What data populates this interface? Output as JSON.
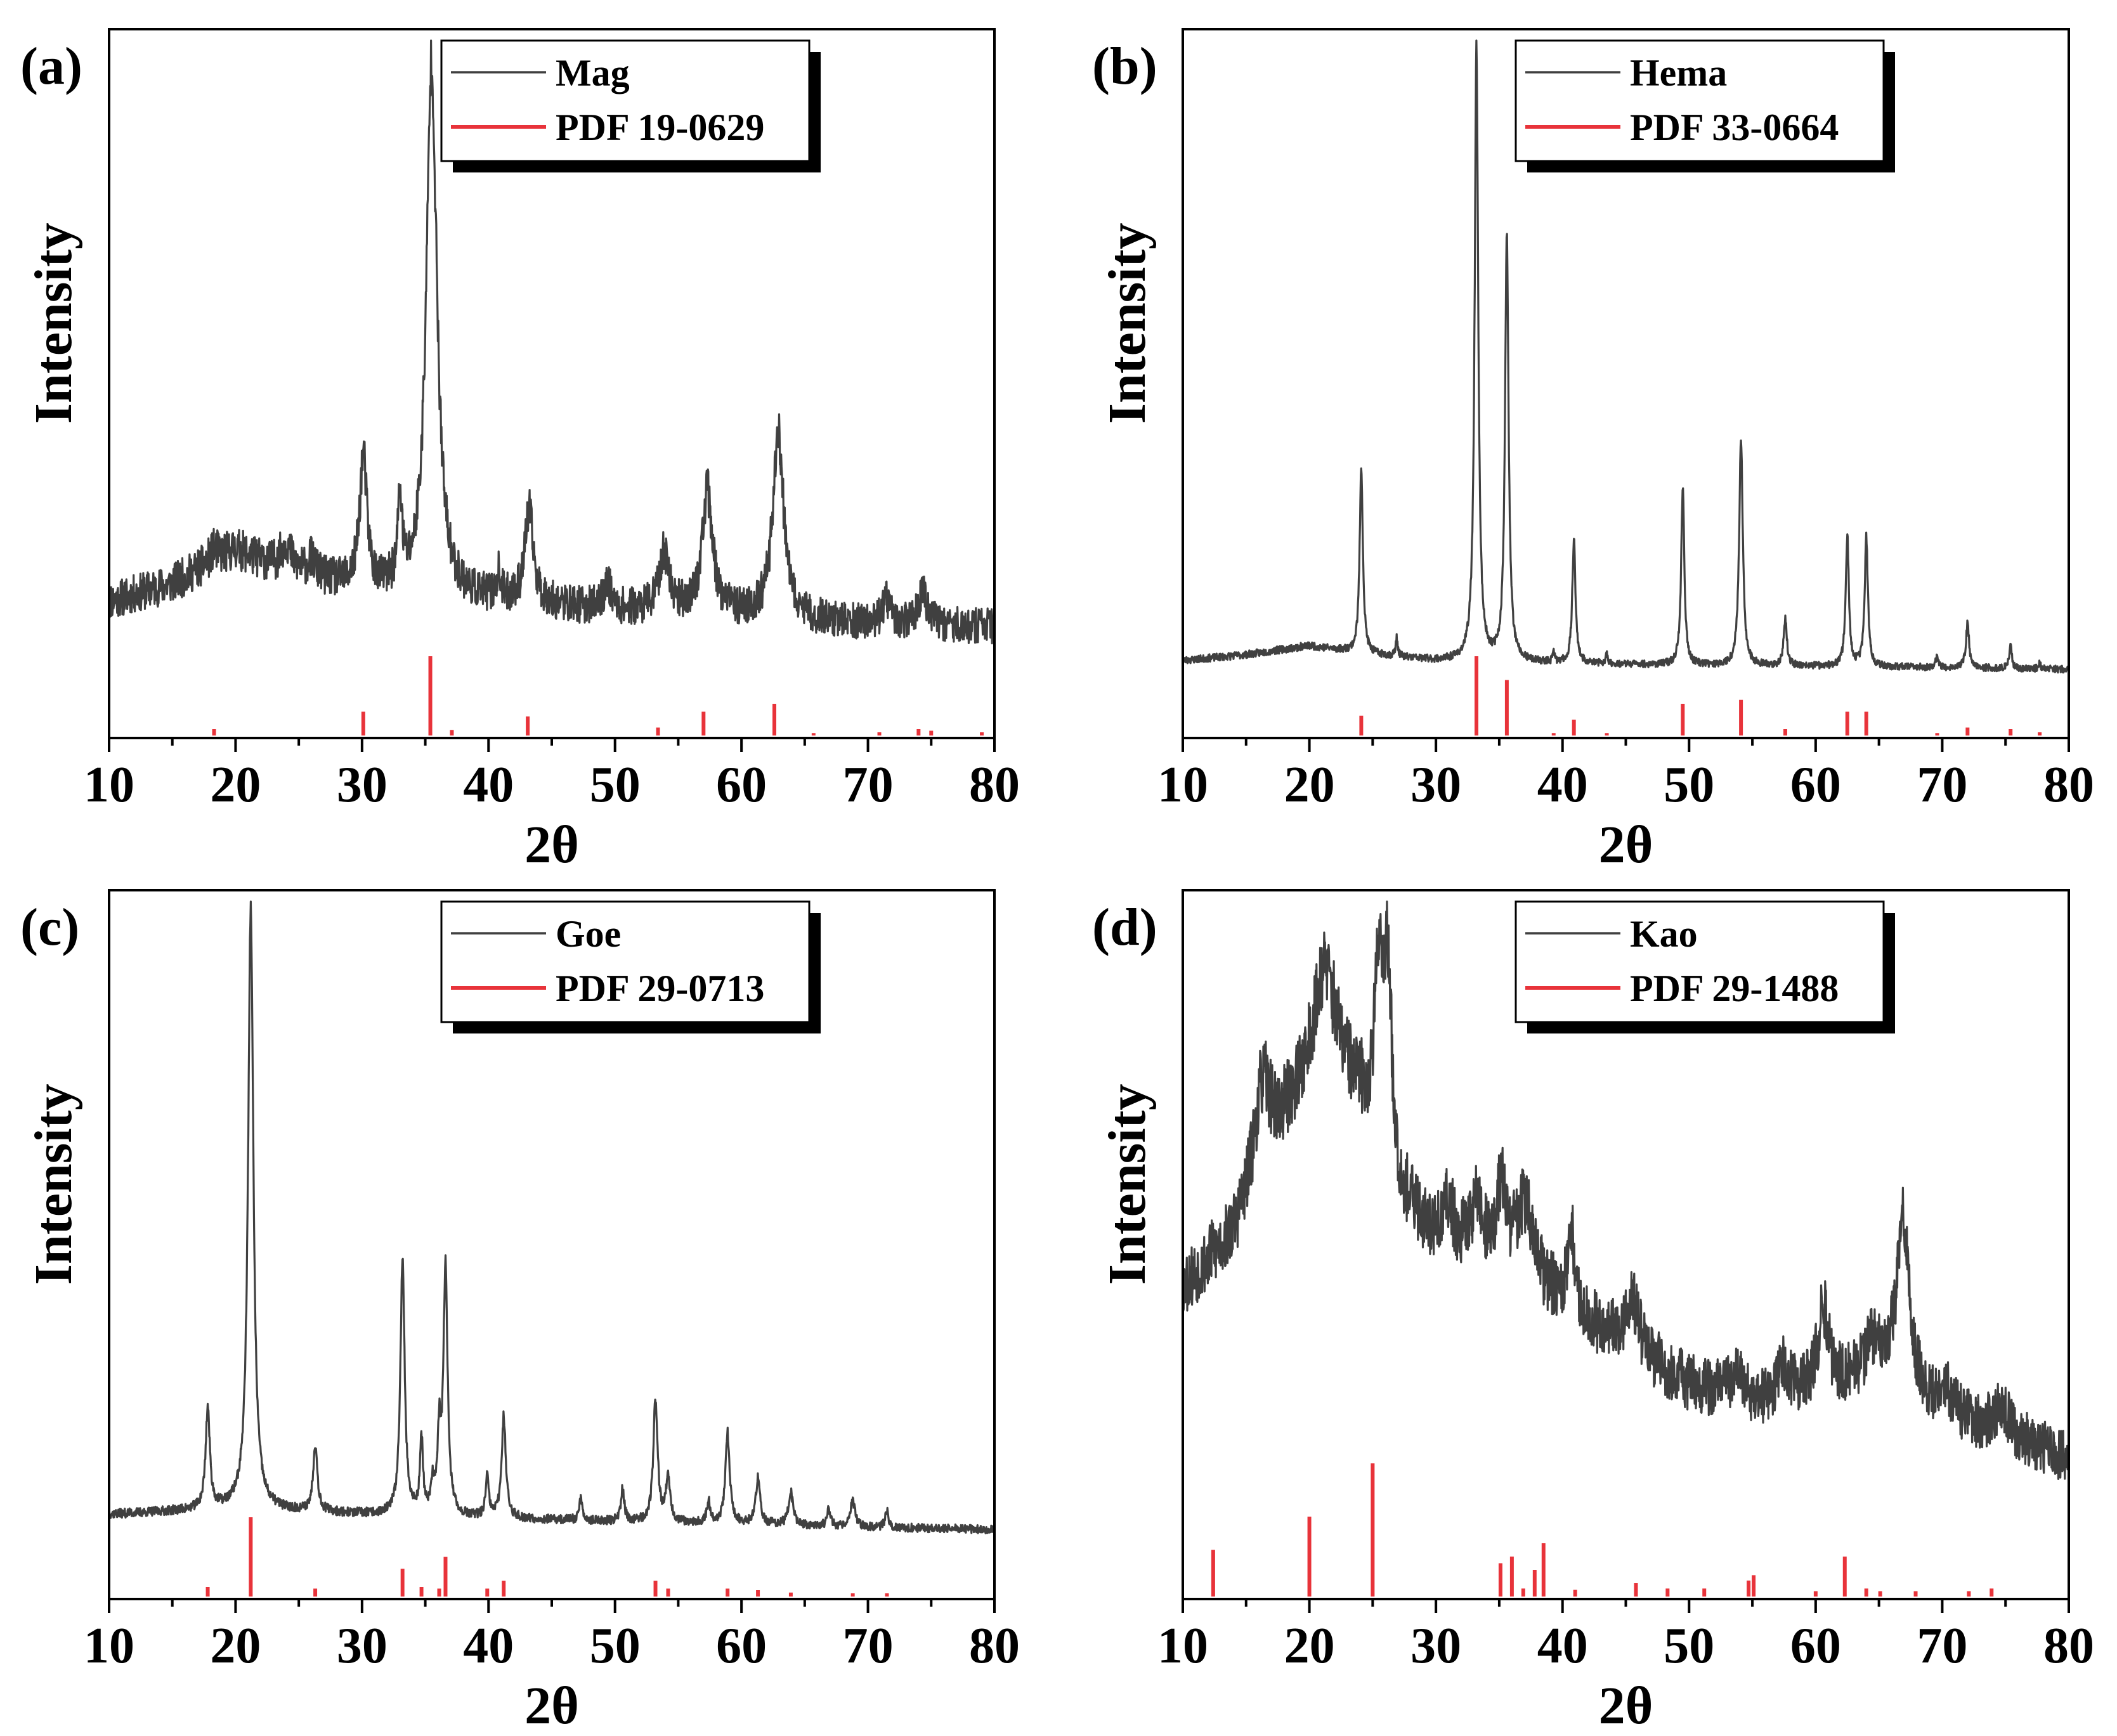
{
  "figure": {
    "description_hidden": false
  },
  "colors": {
    "pattern": "#404040",
    "reference": "#e8333a",
    "axis": "#000000"
  },
  "chart_data": [
    {
      "type": "line",
      "panel_label": "(a)",
      "ylabel": "Intensity",
      "xlabel": "2θ",
      "xlim": [
        10,
        80
      ],
      "xticks": [
        10,
        20,
        30,
        40,
        50,
        60,
        70,
        80
      ],
      "grid": false,
      "legend": {
        "position": "top-right",
        "entries": [
          "Mag",
          "PDF 19-0629"
        ]
      },
      "series": [
        {
          "name": "Mag",
          "kind": "pattern",
          "noise": 0.35,
          "seed": 11,
          "baseline": [
            [
              10,
              1.45
            ],
            [
              15,
              1.75
            ],
            [
              20,
              2.35
            ],
            [
              24,
              1.95
            ],
            [
              30,
              1.65
            ],
            [
              40,
              1.45
            ],
            [
              50,
              1.3
            ],
            [
              60,
              1.2
            ],
            [
              70,
              1.05
            ],
            [
              80,
              1.0
            ]
          ],
          "peaks": [
            [
              18.3,
              0.2,
              0.4
            ],
            [
              24.0,
              0.5,
              0.5
            ],
            [
              26.0,
              0.3,
              0.4
            ],
            [
              30.1,
              2.3,
              0.35
            ],
            [
              33.0,
              1.5,
              0.2
            ],
            [
              35.5,
              9.3,
              0.5
            ],
            [
              40.8,
              0.4,
              0.2
            ],
            [
              43.2,
              1.6,
              0.4
            ],
            [
              49.4,
              0.5,
              0.3
            ],
            [
              53.9,
              1.0,
              0.5
            ],
            [
              57.3,
              2.1,
              0.5
            ],
            [
              62.9,
              3.3,
              0.5
            ],
            [
              71.5,
              0.4,
              0.4
            ],
            [
              74.3,
              0.6,
              0.4
            ]
          ]
        },
        {
          "name": "PDF 19-0629",
          "kind": "reference",
          "sticks": [
            [
              18.3,
              8
            ],
            [
              30.1,
              30
            ],
            [
              35.4,
              100
            ],
            [
              37.1,
              7
            ],
            [
              43.1,
              24
            ],
            [
              53.4,
              10
            ],
            [
              57.0,
              30
            ],
            [
              62.6,
              40
            ],
            [
              65.7,
              3
            ],
            [
              70.9,
              4
            ],
            [
              74.0,
              8
            ],
            [
              75.0,
              6
            ],
            [
              79.0,
              4
            ]
          ]
        }
      ]
    },
    {
      "type": "line",
      "panel_label": "(b)",
      "ylabel": "Intensity",
      "xlabel": "2θ",
      "xlim": [
        10,
        80
      ],
      "xticks": [
        10,
        20,
        30,
        40,
        50,
        60,
        70,
        80
      ],
      "grid": false,
      "legend": {
        "position": "top-right",
        "entries": [
          "Hema",
          "PDF 33-0664"
        ]
      },
      "series": [
        {
          "name": "Hema",
          "kind": "pattern",
          "noise": 0.08,
          "seed": 23,
          "baseline": [
            [
              10,
              0.4
            ],
            [
              15,
              0.5
            ],
            [
              20,
              0.65
            ],
            [
              25,
              0.5
            ],
            [
              30,
              0.4
            ],
            [
              40,
              0.35
            ],
            [
              50,
              0.32
            ],
            [
              60,
              0.3
            ],
            [
              70,
              0.28
            ],
            [
              80,
              0.25
            ]
          ],
          "peaks": [
            [
              24.1,
              3.2,
              0.15
            ],
            [
              26.9,
              0.3,
              0.1
            ],
            [
              33.2,
              10.4,
              0.17
            ],
            [
              35.6,
              7.2,
              0.17
            ],
            [
              39.3,
              0.15,
              0.1
            ],
            [
              40.9,
              2.1,
              0.15
            ],
            [
              43.5,
              0.15,
              0.1
            ],
            [
              49.5,
              3.0,
              0.15
            ],
            [
              54.1,
              3.9,
              0.17
            ],
            [
              57.6,
              0.8,
              0.15
            ],
            [
              62.5,
              2.2,
              0.15
            ],
            [
              64.0,
              2.2,
              0.15
            ],
            [
              69.6,
              0.2,
              0.12
            ],
            [
              72.0,
              0.75,
              0.15
            ],
            [
              75.4,
              0.4,
              0.12
            ],
            [
              77.7,
              0.1,
              0.1
            ]
          ]
        },
        {
          "name": "PDF 33-0664",
          "kind": "reference",
          "sticks": [
            [
              24.1,
              25
            ],
            [
              33.2,
              100
            ],
            [
              35.6,
              70
            ],
            [
              39.3,
              3
            ],
            [
              40.9,
              20
            ],
            [
              43.5,
              3
            ],
            [
              49.5,
              40
            ],
            [
              54.1,
              45
            ],
            [
              57.6,
              8
            ],
            [
              62.5,
              30
            ],
            [
              64.0,
              30
            ],
            [
              69.6,
              3
            ],
            [
              72.0,
              10
            ],
            [
              75.4,
              8
            ],
            [
              77.7,
              4
            ]
          ]
        }
      ]
    },
    {
      "type": "line",
      "panel_label": "(c)",
      "ylabel": "Intensity",
      "xlabel": "2θ",
      "xlim": [
        10,
        80
      ],
      "xticks": [
        10,
        20,
        30,
        40,
        50,
        60,
        70,
        80
      ],
      "grid": false,
      "legend": {
        "position": "top-right",
        "entries": [
          "Goe",
          "PDF 29-0713"
        ]
      },
      "series": [
        {
          "name": "Goe",
          "kind": "pattern",
          "noise": 0.1,
          "seed": 37,
          "baseline": [
            [
              10,
              0.55
            ],
            [
              20,
              0.65
            ],
            [
              30,
              0.55
            ],
            [
              40,
              0.48
            ],
            [
              50,
              0.42
            ],
            [
              60,
              0.38
            ],
            [
              70,
              0.32
            ],
            [
              80,
              0.28
            ]
          ],
          "peaks": [
            [
              17.8,
              1.8,
              0.2
            ],
            [
              21.2,
              10.7,
              0.25
            ],
            [
              26.3,
              1.2,
              0.2
            ],
            [
              33.2,
              4.6,
              0.2
            ],
            [
              34.7,
              1.3,
              0.15
            ],
            [
              35.6,
              0.5,
              0.15
            ],
            [
              36.1,
              1.3,
              0.15
            ],
            [
              36.6,
              4.4,
              0.2
            ],
            [
              39.9,
              0.7,
              0.15
            ],
            [
              41.2,
              1.8,
              0.2
            ],
            [
              47.3,
              0.4,
              0.15
            ],
            [
              50.6,
              0.6,
              0.15
            ],
            [
              53.2,
              2.2,
              0.2
            ],
            [
              54.2,
              0.8,
              0.2
            ],
            [
              57.4,
              0.4,
              0.15
            ],
            [
              58.9,
              1.6,
              0.2
            ],
            [
              61.3,
              0.8,
              0.2
            ],
            [
              63.9,
              0.6,
              0.2
            ],
            [
              66.9,
              0.3,
              0.15
            ],
            [
              68.8,
              0.5,
              0.2
            ],
            [
              71.5,
              0.3,
              0.15
            ]
          ]
        },
        {
          "name": "PDF 29-0713",
          "kind": "reference",
          "sticks": [
            [
              17.8,
              12
            ],
            [
              21.2,
              100
            ],
            [
              26.3,
              10
            ],
            [
              33.2,
              35
            ],
            [
              34.7,
              12
            ],
            [
              36.1,
              10
            ],
            [
              36.6,
              50
            ],
            [
              39.9,
              10
            ],
            [
              41.2,
              20
            ],
            [
              53.2,
              20
            ],
            [
              54.2,
              10
            ],
            [
              58.9,
              10
            ],
            [
              61.3,
              8
            ],
            [
              63.9,
              5
            ],
            [
              68.8,
              4
            ],
            [
              71.5,
              4
            ]
          ]
        }
      ]
    },
    {
      "type": "line",
      "panel_label": "(d)",
      "ylabel": "Intensity",
      "xlabel": "2θ",
      "xlim": [
        10,
        80
      ],
      "xticks": [
        10,
        20,
        30,
        40,
        50,
        60,
        70,
        80
      ],
      "grid": false,
      "legend": {
        "position": "top-right",
        "entries": [
          "Kao",
          "PDF 29-1488"
        ]
      },
      "series": [
        {
          "name": "Kao",
          "kind": "pattern",
          "noise": 0.45,
          "seed": 53,
          "baseline": [
            [
              10,
              4.2
            ],
            [
              14,
              5.0
            ],
            [
              18,
              6.8
            ],
            [
              21,
              8.2
            ],
            [
              24,
              7.2
            ],
            [
              27,
              5.6
            ],
            [
              30,
              5.0
            ],
            [
              35,
              4.6
            ],
            [
              40,
              3.9
            ],
            [
              45,
              3.2
            ],
            [
              50,
              2.6
            ],
            [
              55,
              2.3
            ],
            [
              60,
              2.5
            ],
            [
              65,
              2.7
            ],
            [
              70,
              2.1
            ],
            [
              75,
              1.8
            ],
            [
              80,
              1.4
            ]
          ],
          "peaks": [
            [
              16.3,
              1.5,
              0.8
            ],
            [
              21.3,
              1.2,
              1.0
            ],
            [
              25.5,
              2.8,
              0.4
            ],
            [
              26.2,
              3.0,
              0.4
            ],
            [
              31.0,
              0.6,
              0.4
            ],
            [
              33.2,
              0.8,
              0.5
            ],
            [
              35.2,
              1.2,
              0.4
            ],
            [
              37.0,
              1.2,
              0.8
            ],
            [
              40.7,
              1.3,
              0.3
            ],
            [
              45.5,
              0.9,
              0.6
            ],
            [
              53.7,
              0.5,
              0.5
            ],
            [
              57.5,
              0.5,
              0.5
            ],
            [
              60.6,
              1.3,
              0.5
            ],
            [
              64.5,
              0.5,
              0.8
            ],
            [
              66.9,
              2.8,
              0.6
            ],
            [
              70.4,
              0.4,
              0.6
            ],
            [
              74.7,
              0.5,
              0.6
            ]
          ]
        },
        {
          "name": "PDF 29-1488",
          "kind": "reference",
          "sticks": [
            [
              12.4,
              35
            ],
            [
              20.0,
              60
            ],
            [
              25.0,
              100
            ],
            [
              35.1,
              25
            ],
            [
              36.0,
              30
            ],
            [
              36.9,
              6
            ],
            [
              37.8,
              20
            ],
            [
              38.5,
              40
            ],
            [
              41.0,
              5
            ],
            [
              45.8,
              10
            ],
            [
              48.3,
              6
            ],
            [
              51.2,
              6
            ],
            [
              54.7,
              12
            ],
            [
              55.1,
              16
            ],
            [
              60.0,
              4
            ],
            [
              62.3,
              30
            ],
            [
              64.0,
              6
            ],
            [
              65.1,
              4
            ],
            [
              67.9,
              4
            ],
            [
              72.1,
              4
            ],
            [
              73.9,
              6
            ]
          ]
        }
      ]
    }
  ]
}
